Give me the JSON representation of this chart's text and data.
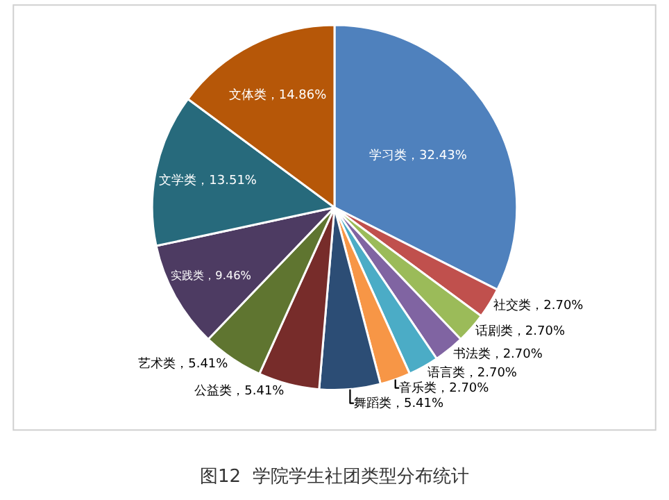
{
  "chart_data": {
    "type": "pie",
    "title": "图12  学院学生社团类型分布统计",
    "categories": [
      "学习类",
      "社交类",
      "话剧类",
      "书法类",
      "语言类",
      "音乐类",
      "舞蹈类",
      "公益类",
      "艺术类",
      "实践类",
      "文学类",
      "文体类"
    ],
    "values": [
      32.43,
      2.7,
      2.7,
      2.7,
      2.7,
      2.7,
      5.41,
      5.41,
      5.41,
      9.46,
      13.51,
      14.86
    ],
    "value_labels": [
      "32.43%",
      "2.70%",
      "2.70%",
      "2.70%",
      "2.70%",
      "2.70%",
      "5.41%",
      "5.41%",
      "5.41%",
      "9.46%",
      "13.51%",
      "14.86%"
    ],
    "colors": [
      "#4f81bd",
      "#c0504d",
      "#9bbb59",
      "#8064a2",
      "#4bacc6",
      "#f79646",
      "#2c4d75",
      "#772c2a",
      "#5f7530",
      "#4d3b62",
      "#276a7c",
      "#b65708"
    ],
    "legend": false
  }
}
